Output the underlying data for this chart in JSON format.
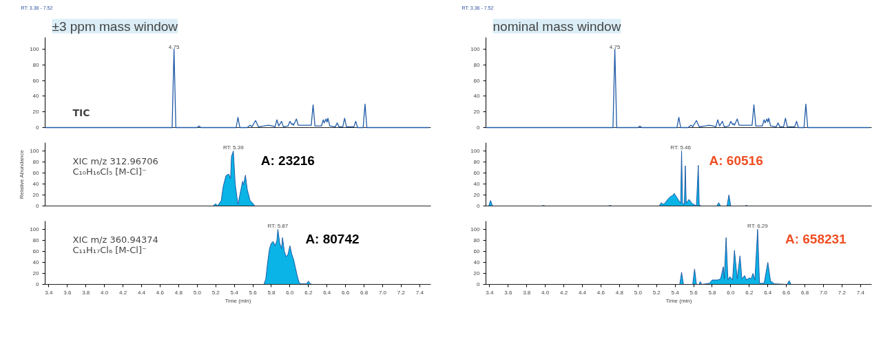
{
  "chart_data": [
    {
      "type": "line",
      "title": "±3 ppm mass window",
      "subtitle": "RT: 3.36 - 7.52",
      "xlim": [
        3.36,
        7.52
      ],
      "ylim": [
        0,
        115
      ],
      "yticks": [
        0,
        20,
        40,
        60,
        80,
        100
      ],
      "xticks": [
        3.4,
        3.6,
        3.8,
        4,
        4.2,
        4.4,
        4.6,
        4.8,
        5,
        5.2,
        5.4,
        5.6,
        5.8,
        6,
        6.2,
        6.4,
        6.6,
        6.8,
        7,
        7.2,
        7.4
      ],
      "tick_labels": "y",
      "grid": false,
      "series": [
        {
          "color": "#1f5aa6",
          "x": [
            3.36,
            4.7,
            4.73,
            4.75,
            4.77,
            5.0,
            5.02,
            5.04,
            5.42,
            5.44,
            5.46,
            5.54,
            5.57,
            5.59,
            5.63,
            5.66,
            5.72,
            5.77,
            5.81,
            5.84,
            5.86,
            5.88,
            5.91,
            5.93,
            5.98,
            6.0,
            6.02,
            6.03,
            6.04,
            6.07,
            6.09,
            6.12,
            6.18,
            6.23,
            6.25,
            6.27,
            6.34,
            6.36,
            6.37,
            6.39,
            6.4,
            6.41,
            6.43,
            6.49,
            6.51,
            6.53,
            6.57,
            6.59,
            6.61,
            6.69,
            6.71,
            6.73,
            6.79,
            6.81,
            6.83,
            7.5
          ],
          "values": [
            0,
            0,
            0,
            100,
            0,
            0,
            2,
            0,
            0,
            13,
            0,
            0,
            3,
            1,
            9,
            1,
            2,
            3,
            2,
            1,
            10,
            2,
            8,
            1,
            2,
            8,
            4,
            5,
            3,
            11,
            3,
            3,
            3,
            3,
            29,
            2,
            2,
            10,
            6,
            11,
            7,
            12,
            2,
            1,
            6,
            1,
            1,
            12,
            1,
            1,
            8,
            0,
            0,
            30,
            0,
            0
          ]
        }
      ],
      "annotations": [
        {
          "text": "4.75",
          "x": 4.75,
          "y": 100
        },
        "TIC"
      ]
    },
    {
      "type": "area",
      "ylabel": "Relative Abundance",
      "xlim": [
        3.36,
        7.52
      ],
      "ylim": [
        0,
        115
      ],
      "yticks": [
        0,
        20,
        40,
        60,
        80,
        100
      ],
      "xticks": [
        3.4,
        3.6,
        3.8,
        4,
        4.2,
        4.4,
        4.6,
        4.8,
        5,
        5.2,
        5.4,
        5.6,
        5.8,
        6,
        6.2,
        6.4,
        6.6,
        6.8,
        7,
        7.2,
        7.4
      ],
      "tick_labels": "y",
      "grid": false,
      "series": [
        {
          "color": "#0ab4e6",
          "x": [
            3.36,
            5.17,
            5.2,
            5.22,
            5.26,
            5.28,
            5.31,
            5.34,
            5.36,
            5.37,
            5.39,
            5.41,
            5.43,
            5.44,
            5.46,
            5.49,
            5.5,
            5.52,
            5.54,
            5.57,
            5.6,
            5.62,
            7.52
          ],
          "values": [
            0,
            0,
            4,
            0,
            10,
            35,
            55,
            58,
            50,
            90,
            100,
            40,
            15,
            3,
            20,
            45,
            38,
            56,
            30,
            10,
            5,
            0,
            0
          ]
        }
      ],
      "annotations": [
        {
          "text": "RT: 5.39",
          "x": 5.39,
          "y": 100
        },
        "A: 23216",
        "XIC m/z 312.96706",
        "C₁₀H₁₆Cl₅ [M-Cl]⁻"
      ]
    },
    {
      "type": "area",
      "xlabel": "Time (min)",
      "xlim": [
        3.36,
        7.52
      ],
      "ylim": [
        0,
        115
      ],
      "yticks": [
        0,
        20,
        40,
        60,
        80,
        100
      ],
      "xticks": [
        3.4,
        3.6,
        3.8,
        {
          "value": 4,
          "label": "4.0"
        },
        4.2,
        4.4,
        4.6,
        4.8,
        {
          "value": 5,
          "label": "5.0"
        },
        5.2,
        5.4,
        5.6,
        5.8,
        {
          "value": 6,
          "label": "6.0"
        },
        6.2,
        6.4,
        6.6,
        6.8,
        {
          "value": 7,
          "label": "7.0"
        },
        7.2,
        7.4
      ],
      "grid": false,
      "series": [
        {
          "color": "#0ab4e6",
          "x": [
            3.36,
            5.72,
            5.74,
            5.76,
            5.78,
            5.8,
            5.82,
            5.84,
            5.86,
            5.87,
            5.89,
            5.91,
            5.92,
            5.94,
            5.96,
            5.98,
            6.0,
            6.02,
            6.04,
            6.06,
            6.08,
            6.1,
            6.12,
            6.18,
            6.2,
            6.22,
            6.24,
            7.52
          ],
          "values": [
            0,
            0,
            10,
            40,
            65,
            75,
            78,
            70,
            80,
            100,
            75,
            65,
            85,
            60,
            50,
            55,
            70,
            55,
            45,
            30,
            15,
            3,
            1,
            1,
            6,
            1,
            0,
            0
          ]
        }
      ],
      "annotations": [
        {
          "text": "RT: 5.87",
          "x": 5.87,
          "y": 100
        },
        "A: 80742",
        "XIC m/z 360.94374",
        "C₁₁H₁₇Cl₆ [M-Cl]⁻"
      ]
    },
    {
      "type": "line",
      "title": "nominal mass window",
      "subtitle": "RT: 3.36 - 7.52",
      "xlim": [
        3.36,
        7.52
      ],
      "ylim": [
        0,
        115
      ],
      "yticks": [
        0,
        20,
        40,
        60,
        80,
        100
      ],
      "xticks": [
        3.4,
        3.6,
        3.8,
        4,
        4.2,
        4.4,
        4.6,
        4.8,
        5,
        5.2,
        5.4,
        5.6,
        5.8,
        6,
        6.2,
        6.4,
        6.6,
        6.8,
        7,
        7.2,
        7.4
      ],
      "tick_labels": "y",
      "grid": false,
      "series": [
        {
          "color": "#1f5aa6",
          "x": [
            3.36,
            4.7,
            4.73,
            4.75,
            4.77,
            5.0,
            5.02,
            5.04,
            5.42,
            5.44,
            5.46,
            5.54,
            5.57,
            5.59,
            5.63,
            5.66,
            5.72,
            5.77,
            5.81,
            5.84,
            5.86,
            5.88,
            5.91,
            5.93,
            5.98,
            6.0,
            6.02,
            6.03,
            6.04,
            6.07,
            6.09,
            6.12,
            6.18,
            6.23,
            6.25,
            6.27,
            6.34,
            6.36,
            6.37,
            6.39,
            6.4,
            6.41,
            6.43,
            6.49,
            6.51,
            6.53,
            6.57,
            6.59,
            6.61,
            6.69,
            6.71,
            6.73,
            6.79,
            6.81,
            6.83,
            7.5
          ],
          "values": [
            0,
            0,
            0,
            100,
            0,
            0,
            2,
            0,
            0,
            13,
            0,
            0,
            3,
            1,
            9,
            1,
            2,
            3,
            2,
            1,
            10,
            2,
            8,
            1,
            2,
            8,
            4,
            5,
            3,
            11,
            3,
            3,
            3,
            3,
            29,
            2,
            2,
            10,
            6,
            11,
            7,
            12,
            2,
            1,
            6,
            1,
            1,
            12,
            1,
            1,
            8,
            0,
            0,
            30,
            0,
            0
          ]
        }
      ],
      "annotations": [
        {
          "text": "4.75",
          "x": 4.75,
          "y": 100
        }
      ]
    },
    {
      "type": "area",
      "xlim": [
        3.36,
        7.52
      ],
      "ylim": [
        0,
        115
      ],
      "yticks": [
        0,
        20,
        40,
        60,
        80,
        100
      ],
      "xticks": [
        3.4,
        3.6,
        3.8,
        4,
        4.2,
        4.4,
        4.6,
        4.8,
        5,
        5.2,
        5.4,
        5.6,
        5.8,
        6,
        6.2,
        6.4,
        6.6,
        6.8,
        7,
        7.2,
        7.4
      ],
      "tick_labels": "y",
      "grid": false,
      "series": [
        {
          "color": "#0ab4e6",
          "x": [
            3.36,
            3.39,
            3.41,
            3.43,
            3.96,
            3.98,
            4.0,
            4.68,
            4.7,
            4.72,
            5.23,
            5.25,
            5.27,
            5.29,
            5.32,
            5.35,
            5.38,
            5.39,
            5.42,
            5.44,
            5.46,
            5.47,
            5.48,
            5.5,
            5.51,
            5.52,
            5.55,
            5.58,
            5.61,
            5.63,
            5.65,
            5.66,
            5.68,
            5.85,
            5.87,
            5.89,
            5.96,
            5.98,
            6.0,
            6.15,
            6.17,
            6.19,
            7.52
          ],
          "values": [
            0,
            0,
            10,
            0,
            0,
            1,
            0,
            0,
            1,
            0,
            0,
            6,
            3,
            5,
            12,
            17,
            20,
            23,
            15,
            10,
            5,
            100,
            5,
            3,
            73,
            5,
            12,
            5,
            2,
            0,
            74,
            2,
            0,
            0,
            6,
            0,
            0,
            20,
            0,
            0,
            1,
            0,
            0
          ]
        }
      ],
      "annotations": [
        {
          "text": "RT: 5.46",
          "x": 5.46,
          "y": 100
        },
        "A: 60516"
      ]
    },
    {
      "type": "area",
      "xlabel": "Time (min)",
      "xlim": [
        3.36,
        7.52
      ],
      "ylim": [
        0,
        115
      ],
      "yticks": [
        0,
        20,
        40,
        60,
        80,
        100
      ],
      "xticks": [
        3.4,
        3.6,
        3.8,
        {
          "value": 4,
          "label": "4.0"
        },
        4.2,
        4.4,
        4.6,
        4.8,
        {
          "value": 5,
          "label": "5.0"
        },
        5.2,
        5.4,
        5.6,
        5.8,
        {
          "value": 6,
          "label": "6.0"
        },
        6.2,
        6.4,
        6.6,
        6.8,
        {
          "value": 7,
          "label": "7.0"
        },
        7.2,
        7.4
      ],
      "grid": false,
      "series": [
        {
          "color": "#0ab4e6",
          "x": [
            3.36,
            5.45,
            5.47,
            5.49,
            5.59,
            5.61,
            5.63,
            5.66,
            5.67,
            5.69,
            5.73,
            5.77,
            5.8,
            5.86,
            5.89,
            5.92,
            5.93,
            5.95,
            5.97,
            5.99,
            6.02,
            6.04,
            6.07,
            6.1,
            6.12,
            6.15,
            6.17,
            6.2,
            6.22,
            6.24,
            6.26,
            6.29,
            6.31,
            6.36,
            6.4,
            6.43,
            6.44,
            6.47,
            6.61,
            6.63,
            6.65,
            7.52
          ],
          "values": [
            0,
            0,
            22,
            0,
            0,
            28,
            0,
            0,
            5,
            0,
            1,
            2,
            8,
            8,
            10,
            32,
            10,
            85,
            8,
            14,
            8,
            62,
            10,
            52,
            10,
            16,
            8,
            12,
            10,
            20,
            8,
            100,
            2,
            2,
            40,
            5,
            5,
            1,
            0,
            7,
            0,
            0
          ]
        }
      ],
      "annotations": [
        {
          "text": "RT: 6.29",
          "x": 6.29,
          "y": 100
        },
        "A: 658231"
      ]
    }
  ]
}
